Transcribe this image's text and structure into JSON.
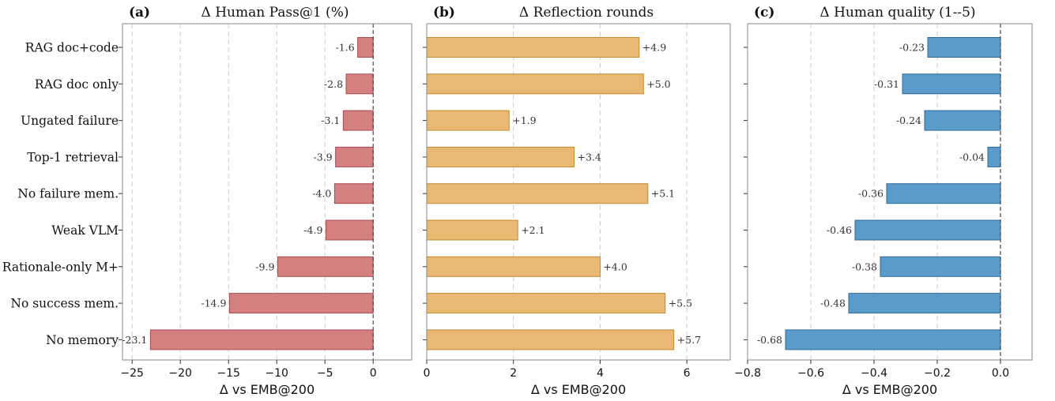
{
  "chart_data": [
    {
      "type": "bar",
      "orientation": "horizontal",
      "panel": "(a)",
      "title": "Δ Human Pass@1 (%)",
      "xlabel": "Δ vs EMB@200",
      "xlim": [
        -26,
        4
      ],
      "xticks": [
        -25,
        -20,
        -15,
        -10,
        -5,
        0
      ],
      "xtick_labels": [
        "−25",
        "−20",
        "−15",
        "−10",
        "−5",
        "0"
      ],
      "categories": [
        "RAG doc+code",
        "RAG doc only",
        "Ungated failure",
        "Top-1 retrieval",
        "No failure mem.",
        "Weak VLM",
        "Rationale-only M+",
        "No success mem.",
        "No memory"
      ],
      "values": [
        -1.6,
        -2.8,
        -3.1,
        -3.9,
        -4.0,
        -4.9,
        -9.9,
        -14.9,
        -23.1
      ],
      "value_labels": [
        "-1.6",
        "-2.8",
        "-3.1",
        "-3.9",
        "-4.0",
        "-4.9",
        "-9.9",
        "-14.9",
        "-23.1"
      ],
      "color": "#d47f80",
      "edge_color": "#a84c52",
      "grid": true,
      "zero_line": true
    },
    {
      "type": "bar",
      "orientation": "horizontal",
      "panel": "(b)",
      "title": "Δ Reflection rounds",
      "xlabel": "Δ vs EMB@200",
      "xlim": [
        0,
        7
      ],
      "xticks": [
        0,
        2,
        4,
        6
      ],
      "xtick_labels": [
        "0",
        "2",
        "4",
        "6"
      ],
      "categories": [
        "RAG doc+code",
        "RAG doc only",
        "Ungated failure",
        "Top-1 retrieval",
        "No failure mem.",
        "Weak VLM",
        "Rationale-only M+",
        "No success mem.",
        "No memory"
      ],
      "values": [
        4.9,
        5.0,
        1.9,
        3.4,
        5.1,
        2.1,
        4.0,
        5.5,
        5.7
      ],
      "value_labels": [
        "+4.9",
        "+5.0",
        "+1.9",
        "+3.4",
        "+5.1",
        "+2.1",
        "+4.0",
        "+5.5",
        "+5.7"
      ],
      "color": "#e9b974",
      "edge_color": "#c08a2e",
      "grid": true,
      "zero_line": false
    },
    {
      "type": "bar",
      "orientation": "horizontal",
      "panel": "(c)",
      "title": "Δ Human quality (1--5)",
      "xlabel": "Δ vs EMB@200",
      "xlim": [
        -0.8,
        0.1
      ],
      "xticks": [
        -0.8,
        -0.6,
        -0.4,
        -0.2,
        0.0
      ],
      "xtick_labels": [
        "−0.8",
        "−0.6",
        "−0.4",
        "−0.2",
        "0.0"
      ],
      "categories": [
        "RAG doc+code",
        "RAG doc only",
        "Ungated failure",
        "Top-1 retrieval",
        "No failure mem.",
        "Weak VLM",
        "Rationale-only M+",
        "No success mem.",
        "No memory"
      ],
      "values": [
        -0.23,
        -0.31,
        -0.24,
        -0.04,
        -0.36,
        -0.46,
        -0.38,
        -0.48,
        -0.68
      ],
      "value_labels": [
        "-0.23",
        "-0.31",
        "-0.24",
        "-0.04",
        "-0.36",
        "-0.46",
        "-0.38",
        "-0.48",
        "-0.68"
      ],
      "color": "#5b9bca",
      "edge_color": "#2f6a98",
      "grid": true,
      "zero_line": true
    }
  ]
}
